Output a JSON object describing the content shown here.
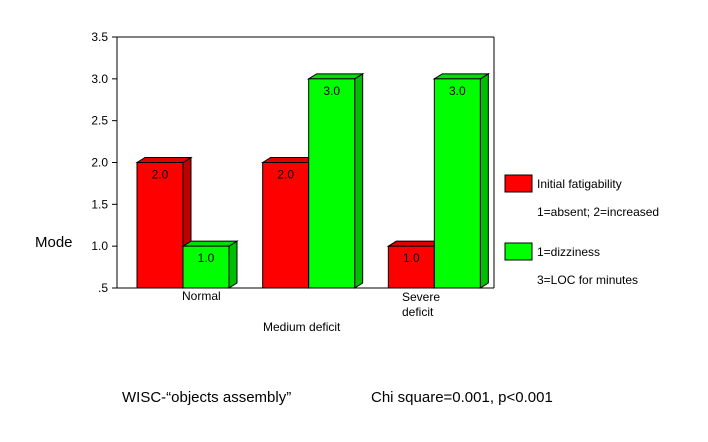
{
  "chart_data": {
    "type": "bar",
    "categories": [
      "Normal",
      "Medium deficit",
      "Severe deficit"
    ],
    "series": [
      {
        "name": "Initial fatigability",
        "name_line2": "1=absent; 2=increased",
        "color": "#ff0000",
        "values": [
          2.0,
          2.0,
          1.0
        ]
      },
      {
        "name": "1=dizziness",
        "name_line2": "3=LOC for minutes",
        "color": "#00ff00",
        "values": [
          1.0,
          3.0,
          3.0
        ]
      }
    ],
    "data_labels": [
      [
        "2.0",
        "2.0",
        "1.0"
      ],
      [
        "1.0",
        "3.0",
        "3.0"
      ]
    ],
    "ylabel": "Mode",
    "ylim": [
      0.5,
      3.5
    ],
    "yticks": [
      ".5",
      "1.0",
      "1.5",
      "2.0",
      "2.5",
      "3.0",
      "3.5"
    ],
    "legend_position": "right",
    "grid": false
  },
  "footer": {
    "left": "WISC-“objects assembly”",
    "right": "Chi square=0.001, p<0.001"
  }
}
